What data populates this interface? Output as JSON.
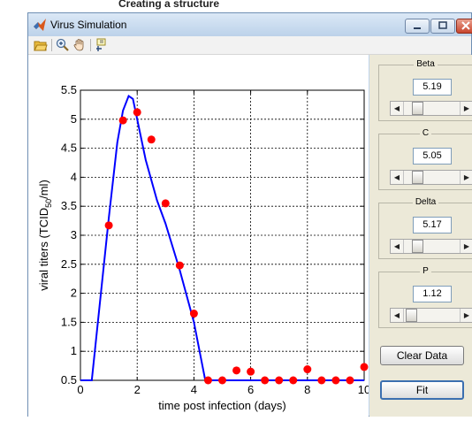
{
  "background_title": "Creating a structure",
  "window": {
    "title": "Virus Simulation",
    "controls": [
      "minimize",
      "maximize",
      "close"
    ]
  },
  "toolbar": {
    "icons": [
      "open-folder-icon",
      "zoom-in-icon",
      "pan-hand-icon",
      "data-cursor-icon"
    ]
  },
  "panel": {
    "params": [
      {
        "label": "Beta",
        "value": "5.19",
        "slider_fraction": 0.2
      },
      {
        "label": "C",
        "value": "5.05",
        "slider_fraction": 0.2
      },
      {
        "label": "Delta",
        "value": "5.17",
        "slider_fraction": 0.2
      },
      {
        "label": "P",
        "value": "1.12",
        "slider_fraction": 0.05
      }
    ],
    "clear_label": "Clear Data",
    "fit_label": "Fit"
  },
  "chart_data": {
    "type": "line",
    "xlabel": "time post infection (days)",
    "ylabel_main": "viral titers (TCID",
    "ylabel_sub": "50",
    "ylabel_end": "/ml)",
    "xlim": [
      0,
      10
    ],
    "ylim": [
      0.5,
      5.5
    ],
    "x_ticks": [
      "0",
      "2",
      "4",
      "6",
      "8",
      "10"
    ],
    "y_ticks": [
      "0.5",
      "1",
      "1.5",
      "2",
      "2.5",
      "3",
      "3.5",
      "4",
      "4.5",
      "5",
      "5.5"
    ],
    "grid": true,
    "series": [
      {
        "kind": "line",
        "color": "#0000ff",
        "x": [
          0,
          0.4,
          0.7,
          1.0,
          1.3,
          1.5,
          1.7,
          1.85,
          2.0,
          2.3,
          2.7,
          3.0,
          3.5,
          4.0,
          4.4,
          4.6,
          10
        ],
        "y": [
          0.5,
          0.5,
          1.9,
          3.3,
          4.6,
          5.15,
          5.4,
          5.35,
          5.0,
          4.3,
          3.6,
          3.2,
          2.4,
          1.5,
          0.5,
          0.5,
          0.5
        ]
      },
      {
        "kind": "scatter",
        "color": "#ff0000",
        "x": [
          1.0,
          1.5,
          2.0,
          2.5,
          3.0,
          3.5,
          4.0,
          4.5,
          5.0,
          5.5,
          6.0,
          6.5,
          7.0,
          7.5,
          8.0,
          8.5,
          9.0,
          9.5,
          10.0
        ],
        "y": [
          3.17,
          4.98,
          5.12,
          4.65,
          3.55,
          2.48,
          1.65,
          0.5,
          0.5,
          0.67,
          0.65,
          0.5,
          0.5,
          0.5,
          0.69,
          0.5,
          0.5,
          0.5,
          0.73
        ]
      }
    ]
  }
}
